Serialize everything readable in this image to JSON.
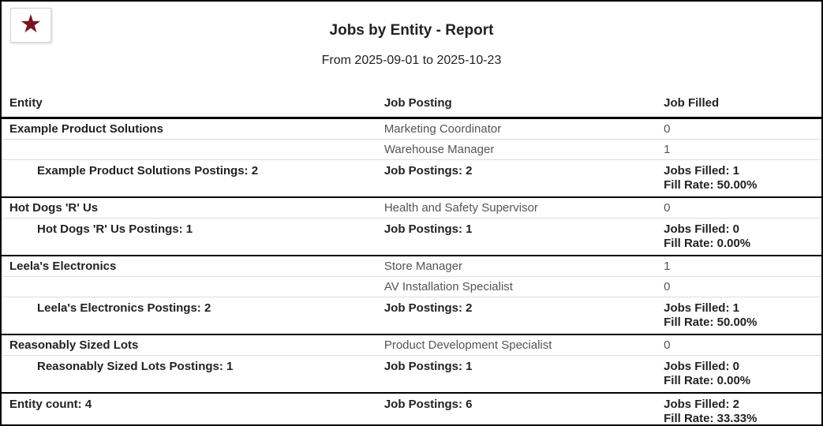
{
  "logo": {
    "icon": "star-icon",
    "star_glyph": "★",
    "star_color": "#7b1323"
  },
  "header": {
    "title": "Jobs by Entity - Report",
    "date_range": "From 2025-09-01 to 2025-10-23"
  },
  "table": {
    "columns": [
      "Entity",
      "Job Posting",
      "Job Filled"
    ],
    "sections": [
      {
        "entity": "Example Product Solutions",
        "rows": [
          {
            "posting": "Marketing Coordinator",
            "filled": "0"
          },
          {
            "posting": "Warehouse Manager",
            "filled": "1"
          }
        ],
        "summary": {
          "postings_label": "Example Product Solutions Postings: 2",
          "job_postings": "Job Postings: 2",
          "jobs_filled": "Jobs Filled: 1",
          "fill_rate": "Fill Rate: 50.00%"
        }
      },
      {
        "entity": "Hot Dogs 'R' Us",
        "rows": [
          {
            "posting": "Health and Safety Supervisor",
            "filled": "0"
          }
        ],
        "summary": {
          "postings_label": "Hot Dogs 'R' Us Postings: 1",
          "job_postings": "Job Postings: 1",
          "jobs_filled": "Jobs Filled: 0",
          "fill_rate": "Fill Rate: 0.00%"
        }
      },
      {
        "entity": "Leela's Electronics",
        "rows": [
          {
            "posting": "Store Manager",
            "filled": "1"
          },
          {
            "posting": "AV Installation Specialist",
            "filled": "0"
          }
        ],
        "summary": {
          "postings_label": "Leela's Electronics Postings: 2",
          "job_postings": "Job Postings: 2",
          "jobs_filled": "Jobs Filled: 1",
          "fill_rate": "Fill Rate: 50.00%"
        }
      },
      {
        "entity": "Reasonably Sized Lots",
        "rows": [
          {
            "posting": "Product Development Specialist",
            "filled": "0"
          }
        ],
        "summary": {
          "postings_label": "Reasonably Sized Lots Postings: 1",
          "job_postings": "Job Postings: 1",
          "jobs_filled": "Jobs Filled: 0",
          "fill_rate": "Fill Rate: 0.00%"
        }
      }
    ],
    "totals": {
      "entity_count": "Entity count: 4",
      "job_postings": "Job Postings: 6",
      "jobs_filled": "Jobs Filled: 2",
      "fill_rate": "Fill Rate: 33.33%"
    }
  }
}
